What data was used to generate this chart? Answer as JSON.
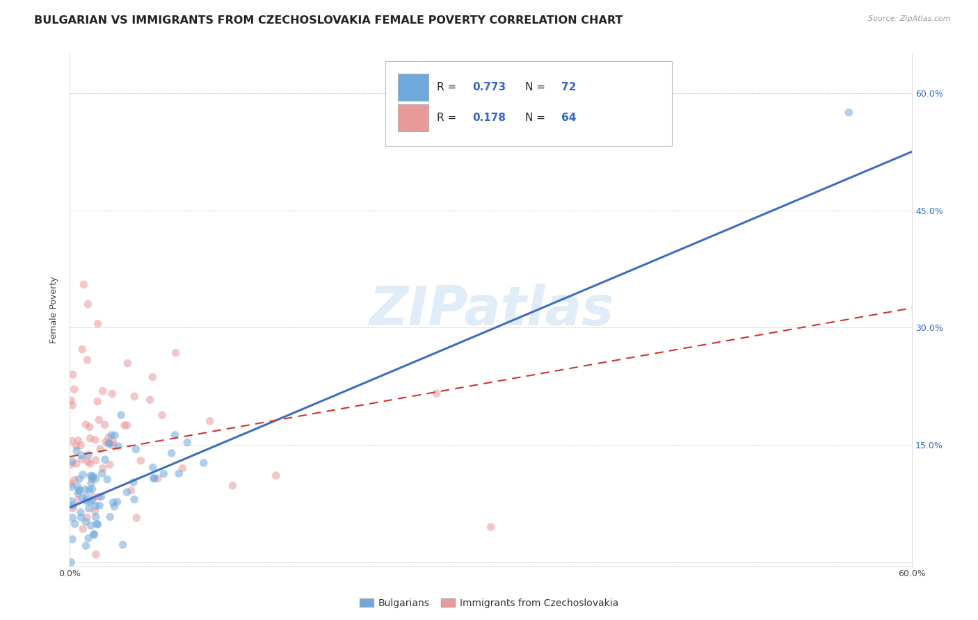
{
  "title": "BULGARIAN VS IMMIGRANTS FROM CZECHOSLOVAKIA FEMALE POVERTY CORRELATION CHART",
  "source": "Source: ZipAtlas.com",
  "ylabel": "Female Poverty",
  "x_min": 0.0,
  "x_max": 0.6,
  "y_min": -0.005,
  "y_max": 0.65,
  "x_tick_pos": [
    0.0,
    0.1,
    0.2,
    0.3,
    0.4,
    0.5,
    0.6
  ],
  "x_tick_labels": [
    "0.0%",
    "",
    "",
    "",
    "",
    "",
    "60.0%"
  ],
  "y_tick_pos": [
    0.0,
    0.15,
    0.3,
    0.45,
    0.6
  ],
  "y_tick_labels": [
    "",
    "15.0%",
    "30.0%",
    "45.0%",
    "60.0%"
  ],
  "blue_color": "#6fa8dc",
  "pink_color": "#ea9999",
  "blue_line_color": "#3d6ebf",
  "pink_line_color": "#cc3333",
  "R_blue": 0.773,
  "N_blue": 72,
  "R_pink": 0.178,
  "N_pink": 64,
  "legend_label_blue": "Bulgarians",
  "legend_label_pink": "Immigrants from Czechoslovakia",
  "watermark": "ZIPatlas",
  "blue_line_y_start": 0.07,
  "blue_line_y_end": 0.525,
  "pink_line_y_start": 0.135,
  "pink_line_y_end": 0.325,
  "background_color": "#ffffff",
  "grid_color": "#cccccc",
  "title_fontsize": 11.5,
  "axis_label_fontsize": 9,
  "tick_fontsize": 9,
  "scatter_size": 70
}
